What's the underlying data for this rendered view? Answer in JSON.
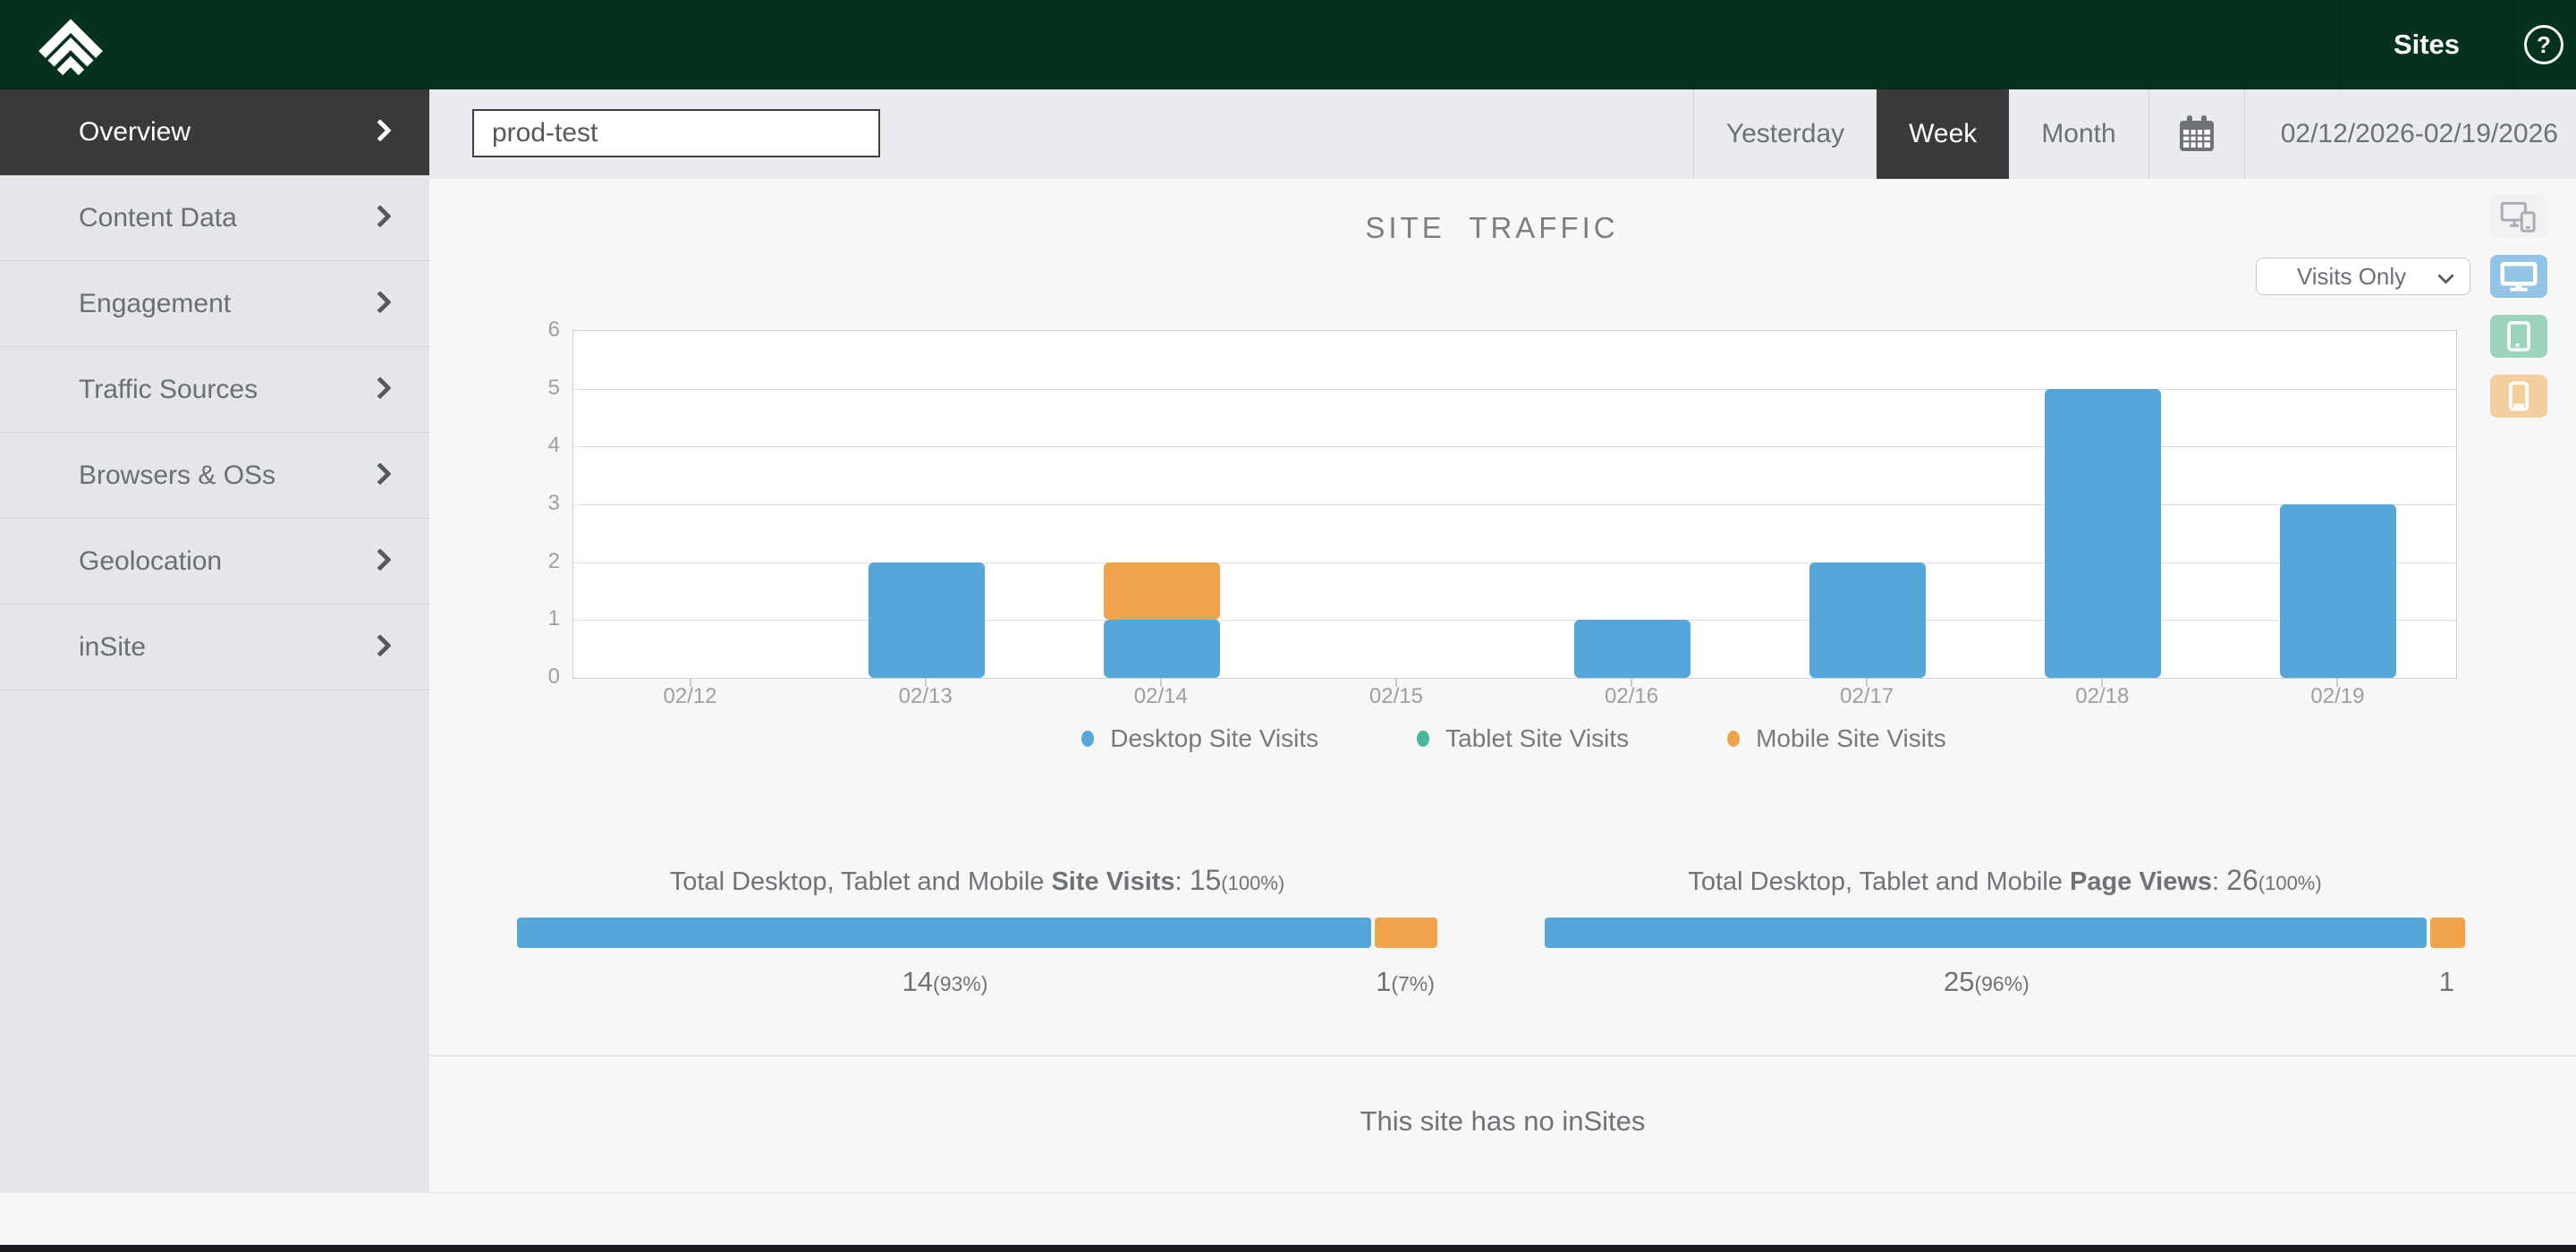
{
  "topbar": {
    "title": "Sites",
    "help_label": "?"
  },
  "sidebar": {
    "items": [
      {
        "label": "Overview",
        "active": true
      },
      {
        "label": "Content Data",
        "active": false
      },
      {
        "label": "Engagement",
        "active": false
      },
      {
        "label": "Traffic Sources",
        "active": false
      },
      {
        "label": "Browsers & OSs",
        "active": false
      },
      {
        "label": "Geolocation",
        "active": false
      },
      {
        "label": "inSite",
        "active": false
      }
    ]
  },
  "toolbar": {
    "search_value": "prod-test",
    "ranges": [
      {
        "label": "Yesterday",
        "active": false
      },
      {
        "label": "Week",
        "active": true
      },
      {
        "label": "Month",
        "active": false
      }
    ],
    "date_range": "02/12/2026-02/19/2026"
  },
  "chart_header": {
    "metric_select_value": "Visits Only"
  },
  "device_toggles": [
    {
      "name": "all-devices",
      "color": "#f0f1f3"
    },
    {
      "name": "desktop",
      "color": "#93c4e7"
    },
    {
      "name": "tablet",
      "color": "#9cd4bd"
    },
    {
      "name": "mobile",
      "color": "#f3cf9d"
    }
  ],
  "chart_data": {
    "type": "bar",
    "stacked": true,
    "title": "SITE TRAFFIC",
    "categories": [
      "02/12",
      "02/13",
      "02/14",
      "02/15",
      "02/16",
      "02/17",
      "02/18",
      "02/19"
    ],
    "series": [
      {
        "name": "Desktop Site Visits",
        "color": "#55a6d9",
        "values": [
          0,
          2,
          1,
          0,
          1,
          2,
          5,
          3
        ]
      },
      {
        "name": "Tablet Site Visits",
        "color": "#47b79c",
        "values": [
          0,
          0,
          0,
          0,
          0,
          0,
          0,
          0
        ]
      },
      {
        "name": "Mobile Site Visits",
        "color": "#f0a348",
        "values": [
          0,
          0,
          1,
          0,
          0,
          0,
          0,
          0
        ]
      }
    ],
    "xlabel": "",
    "ylabel": "",
    "ylim": [
      0,
      6
    ],
    "yticks": [
      0,
      1,
      2,
      3,
      4,
      5,
      6
    ],
    "grid": true,
    "legend_position": "bottom"
  },
  "totals": [
    {
      "prefix": "Total Desktop, Tablet and Mobile",
      "bold": "Site Visits",
      "sep": ": ",
      "value": "15",
      "pct": "(100%)",
      "segments": [
        {
          "fraction": 0.93,
          "color": "#55a6d9",
          "value": "14",
          "pct": "(93%)"
        },
        {
          "fraction": 0.07,
          "color": "#f0a348",
          "value": "1",
          "pct": "(7%)"
        }
      ]
    },
    {
      "prefix": "Total Desktop, Tablet and Mobile",
      "bold": "Page Views",
      "sep": ": ",
      "value": "26",
      "pct": "(100%)",
      "segments": [
        {
          "fraction": 0.96,
          "color": "#55a6d9",
          "value": "25",
          "pct": "(96%)"
        },
        {
          "fraction": 0.04,
          "color": "#f0a348",
          "value": "1",
          "pct": ""
        }
      ]
    }
  ],
  "insites": {
    "message": "This site has no inSites"
  }
}
